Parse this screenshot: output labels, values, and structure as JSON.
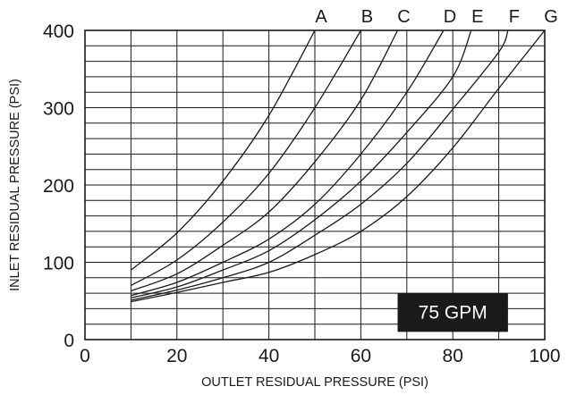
{
  "chart_data": {
    "type": "line",
    "xlabel": "OUTLET RESIDUAL PRESSURE (PSI)",
    "ylabel": "INLET RESIDUAL PRESSURE (PSI)",
    "xlim": [
      0,
      100
    ],
    "ylim": [
      0,
      400
    ],
    "x_ticks": [
      "0",
      "20",
      "40",
      "60",
      "80",
      "100"
    ],
    "y_ticks": [
      "0",
      "100",
      "200",
      "300",
      "400"
    ],
    "grid": true,
    "annotation": "75 GPM",
    "colors": {
      "line": "#1a1a1a",
      "grid": "#1a1a1a",
      "annotation_bg": "#1a1a1a",
      "annotation_text": "#ffffff"
    },
    "series": [
      {
        "name": "A",
        "points": [
          [
            10,
            90
          ],
          [
            20,
            138
          ],
          [
            30,
            205
          ],
          [
            40,
            290
          ],
          [
            50,
            400
          ]
        ]
      },
      {
        "name": "B",
        "points": [
          [
            10,
            70
          ],
          [
            20,
            103
          ],
          [
            30,
            152
          ],
          [
            40,
            215
          ],
          [
            50,
            300
          ],
          [
            60,
            400
          ]
        ]
      },
      {
        "name": "C",
        "points": [
          [
            10,
            63
          ],
          [
            20,
            85
          ],
          [
            30,
            122
          ],
          [
            40,
            165
          ],
          [
            50,
            230
          ],
          [
            60,
            310
          ],
          [
            68,
            400
          ]
        ]
      },
      {
        "name": "D",
        "points": [
          [
            10,
            57
          ],
          [
            20,
            74
          ],
          [
            30,
            100
          ],
          [
            40,
            130
          ],
          [
            50,
            175
          ],
          [
            60,
            240
          ],
          [
            70,
            320
          ],
          [
            78,
            400
          ]
        ]
      },
      {
        "name": "E",
        "points": [
          [
            10,
            54
          ],
          [
            20,
            68
          ],
          [
            30,
            90
          ],
          [
            40,
            115
          ],
          [
            50,
            155
          ],
          [
            60,
            205
          ],
          [
            70,
            268
          ],
          [
            80,
            340
          ],
          [
            84,
            400
          ]
        ]
      },
      {
        "name": "F",
        "points": [
          [
            10,
            51
          ],
          [
            20,
            64
          ],
          [
            30,
            80
          ],
          [
            40,
            100
          ],
          [
            50,
            135
          ],
          [
            60,
            175
          ],
          [
            70,
            228
          ],
          [
            80,
            298
          ],
          [
            90,
            372
          ],
          [
            92,
            400
          ]
        ]
      },
      {
        "name": "G",
        "points": [
          [
            10,
            49
          ],
          [
            20,
            61
          ],
          [
            30,
            74
          ],
          [
            40,
            87
          ],
          [
            50,
            110
          ],
          [
            60,
            140
          ],
          [
            70,
            185
          ],
          [
            80,
            248
          ],
          [
            90,
            325
          ],
          [
            100,
            400
          ]
        ]
      }
    ]
  }
}
